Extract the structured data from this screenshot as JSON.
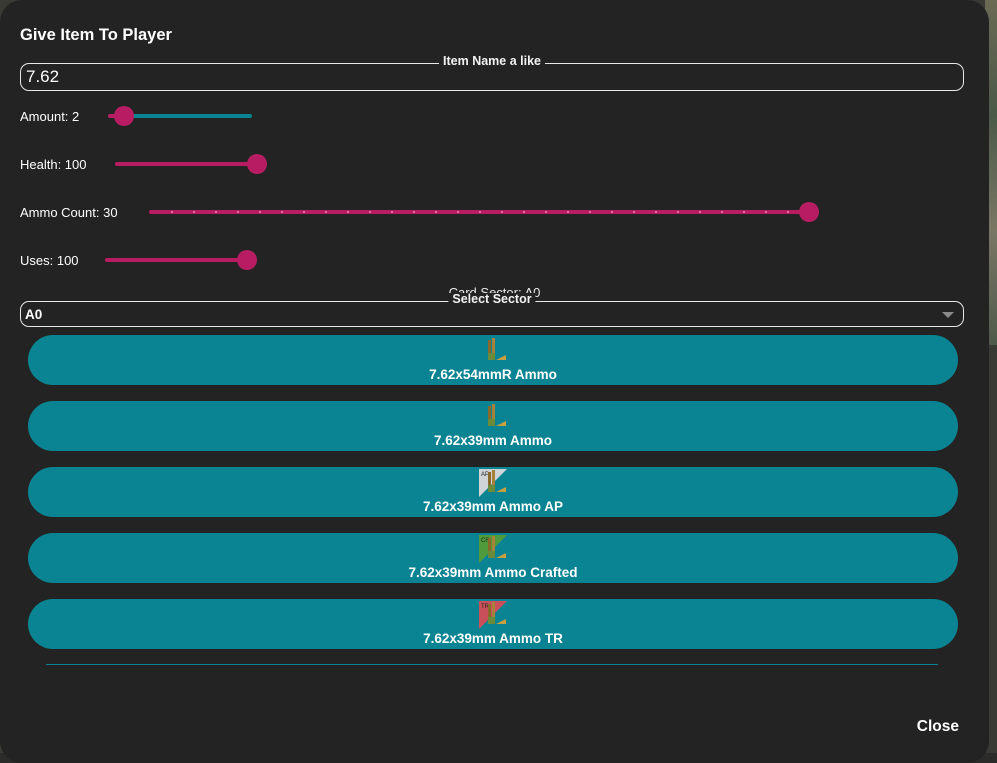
{
  "dialog": {
    "title": "Give Item To Player",
    "close_label": "Close"
  },
  "item_name": {
    "legend": "Item Name a like",
    "value": "7.62"
  },
  "sliders": {
    "amount": {
      "label": "Amount: 2",
      "value": 2
    },
    "health": {
      "label": "Health: 100",
      "value": 100
    },
    "ammo_count": {
      "label": "Ammo Count: 30",
      "value": 30
    },
    "uses": {
      "label": "Uses: 100",
      "value": 100
    }
  },
  "sector": {
    "card_label": "Card Sector: A0",
    "legend": "Select Sector",
    "value": "A0",
    "caret_icon": "triangle-down-icon"
  },
  "colors": {
    "accent_teal": "#0a8492",
    "accent_pink": "#b81d63",
    "panel": "#232323"
  },
  "items": [
    {
      "label": "7.62x54mmR Ammo",
      "icon": "ammo-icon",
      "badge": ""
    },
    {
      "label": "7.62x39mm Ammo",
      "icon": "ammo-icon",
      "badge": ""
    },
    {
      "label": "7.62x39mm Ammo AP",
      "icon": "ammo-ap-icon",
      "badge": "AP"
    },
    {
      "label": "7.62x39mm Ammo Crafted",
      "icon": "ammo-crafted-icon",
      "badge": "CR"
    },
    {
      "label": "7.62x39mm Ammo TR",
      "icon": "ammo-tr-icon",
      "badge": "TR"
    }
  ]
}
